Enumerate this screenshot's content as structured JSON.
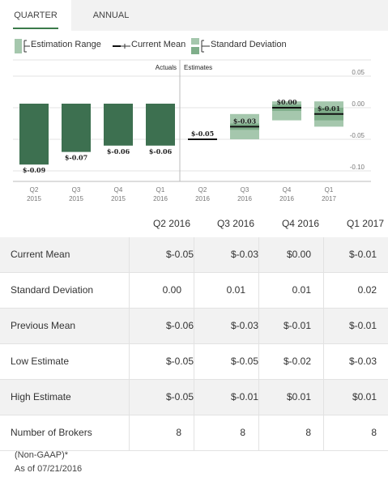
{
  "tabs": [
    {
      "label": "QUARTER",
      "active": true
    },
    {
      "label": "ANNUAL",
      "active": false
    }
  ],
  "legend": {
    "estimation_range": "Estimation Range",
    "current_mean": "Current Mean",
    "standard_deviation": "Standard Deviation"
  },
  "colors": {
    "actual_bar": "#3d7050",
    "range_light": "#a5c7ad",
    "range_mid": "#7fae8a",
    "mean_line": "#111111",
    "tab_accent": "#3b7a4a"
  },
  "chart_data": {
    "type": "bar",
    "section_labels": [
      "Actuals",
      "Estimates"
    ],
    "categories": [
      "Q2\n2015",
      "Q3\n2015",
      "Q4\n2015",
      "Q1\n2016",
      "Q2\n2016",
      "Q3\n2016",
      "Q4\n2016",
      "Q1\n2017"
    ],
    "actuals": [
      {
        "value": -0.09,
        "label": "$-0.09"
      },
      {
        "value": -0.07,
        "label": "$-0.07"
      },
      {
        "value": -0.06,
        "label": "$-0.06"
      },
      {
        "value": -0.06,
        "label": "$-0.06"
      }
    ],
    "estimates": [
      {
        "mean": -0.05,
        "low": -0.05,
        "high": -0.05,
        "std": 0.0,
        "label": "$-0.05"
      },
      {
        "mean": -0.03,
        "low": -0.05,
        "high": -0.01,
        "std": 0.01,
        "label": "$-0.03"
      },
      {
        "mean": 0.0,
        "low": -0.02,
        "high": 0.01,
        "std": 0.01,
        "label": "$0.00"
      },
      {
        "mean": -0.01,
        "low": -0.03,
        "high": 0.01,
        "std": 0.02,
        "label": "$-0.01"
      }
    ],
    "yticks": [
      "0.05",
      "0.00",
      "-0.05",
      "-0.10"
    ],
    "ylim": [
      -0.1,
      0.05
    ],
    "grid": true,
    "legend_position": "top"
  },
  "table": {
    "columns": [
      "Q2 2016",
      "Q3 2016",
      "Q4 2016",
      "Q1 2017"
    ],
    "rows": [
      {
        "label": "Current Mean",
        "values": [
          "$-0.05",
          "$-0.03",
          "$0.00",
          "$-0.01"
        ]
      },
      {
        "label": "Standard Deviation",
        "values": [
          "0.00",
          "0.01",
          "0.01",
          "0.02"
        ]
      },
      {
        "label": "Previous Mean",
        "values": [
          "$-0.06",
          "$-0.03",
          "$-0.01",
          "$-0.01"
        ]
      },
      {
        "label": "Low Estimate",
        "values": [
          "$-0.05",
          "$-0.05",
          "$-0.02",
          "$-0.03"
        ]
      },
      {
        "label": "High Estimate",
        "values": [
          "$-0.05",
          "$-0.01",
          "$0.01",
          "$0.01"
        ]
      },
      {
        "label": "Number of Brokers",
        "values": [
          "8",
          "8",
          "8",
          "8"
        ]
      }
    ]
  },
  "footer": {
    "note": "(Non-GAAP)*",
    "as_of": "As of 07/21/2016"
  }
}
